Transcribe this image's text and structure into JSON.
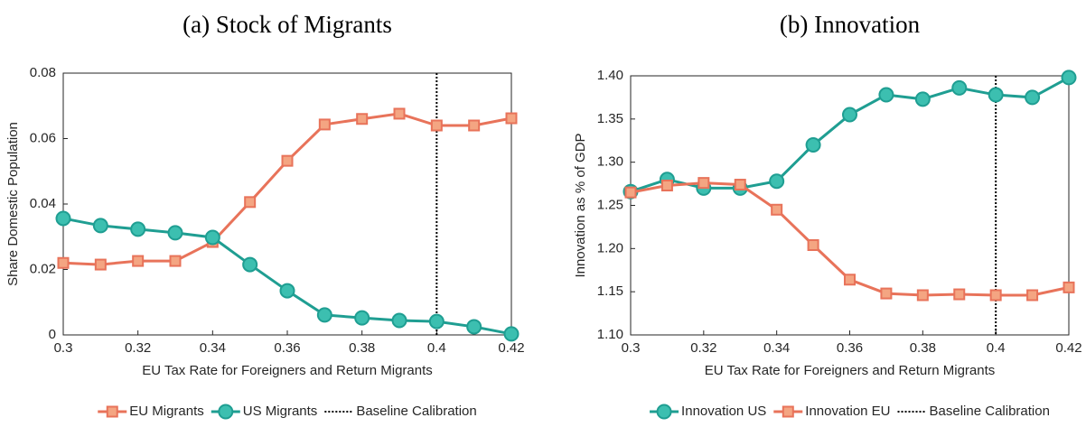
{
  "chart_data": [
    {
      "type": "line",
      "title": "(a) Stock of Migrants",
      "xlabel": "EU Tax Rate for Foreigners and Return Migrants",
      "ylabel": "Share Domestic Population",
      "x": [
        0.3,
        0.31,
        0.32,
        0.33,
        0.34,
        0.35,
        0.36,
        0.37,
        0.38,
        0.39,
        0.4,
        0.41,
        0.42
      ],
      "series": [
        {
          "name": "EU Migrants",
          "color": "#e8735a",
          "marker": "square",
          "values": [
            0.022,
            0.0215,
            0.0226,
            0.0226,
            0.0284,
            0.0406,
            0.0532,
            0.0643,
            0.066,
            0.0676,
            0.064,
            0.064,
            0.0662
          ]
        },
        {
          "name": "US Migrants",
          "color": "#1f9e92",
          "marker": "circle",
          "values": [
            0.0356,
            0.0334,
            0.0323,
            0.0312,
            0.0298,
            0.0215,
            0.0135,
            0.0061,
            0.0052,
            0.0044,
            0.0041,
            0.0025,
            0.0003
          ]
        }
      ],
      "baseline": {
        "x": 0.4,
        "name": "Baseline Calibration"
      },
      "xlim": [
        0.3,
        0.42
      ],
      "xticks": [
        0.3,
        0.32,
        0.34,
        0.36,
        0.38,
        0.4,
        0.42
      ],
      "ylim": [
        0,
        0.08
      ],
      "yticks": [
        0,
        0.02,
        0.04,
        0.06,
        0.08
      ]
    },
    {
      "type": "line",
      "title": "(b) Innovation",
      "xlabel": "EU Tax Rate for Foreigners and Return Migrants",
      "ylabel": "Innovation as % of GDP",
      "x": [
        0.3,
        0.31,
        0.32,
        0.33,
        0.34,
        0.35,
        0.36,
        0.37,
        0.38,
        0.39,
        0.4,
        0.41,
        0.42
      ],
      "series": [
        {
          "name": "Innovation US",
          "color": "#1f9e92",
          "marker": "circle",
          "values": [
            1.266,
            1.28,
            1.27,
            1.27,
            1.278,
            1.32,
            1.355,
            1.378,
            1.373,
            1.386,
            1.378,
            1.375,
            1.398
          ]
        },
        {
          "name": "Innovation EU",
          "color": "#e8735a",
          "marker": "square",
          "values": [
            1.265,
            1.273,
            1.276,
            1.274,
            1.245,
            1.204,
            1.164,
            1.148,
            1.146,
            1.147,
            1.146,
            1.146,
            1.155
          ]
        }
      ],
      "baseline": {
        "x": 0.4,
        "name": "Baseline Calibration"
      },
      "xlim": [
        0.3,
        0.42
      ],
      "xticks": [
        0.3,
        0.32,
        0.34,
        0.36,
        0.38,
        0.4,
        0.42
      ],
      "ylim": [
        1.1,
        1.4
      ],
      "yticks": [
        {
          "value": 1.1,
          "label": "1.10"
        },
        1.15,
        {
          "value": 1.2,
          "label": "1.20"
        },
        1.25,
        {
          "value": 1.3,
          "label": "1.30"
        },
        1.35,
        {
          "value": 1.4,
          "label": "1.40"
        }
      ]
    }
  ]
}
